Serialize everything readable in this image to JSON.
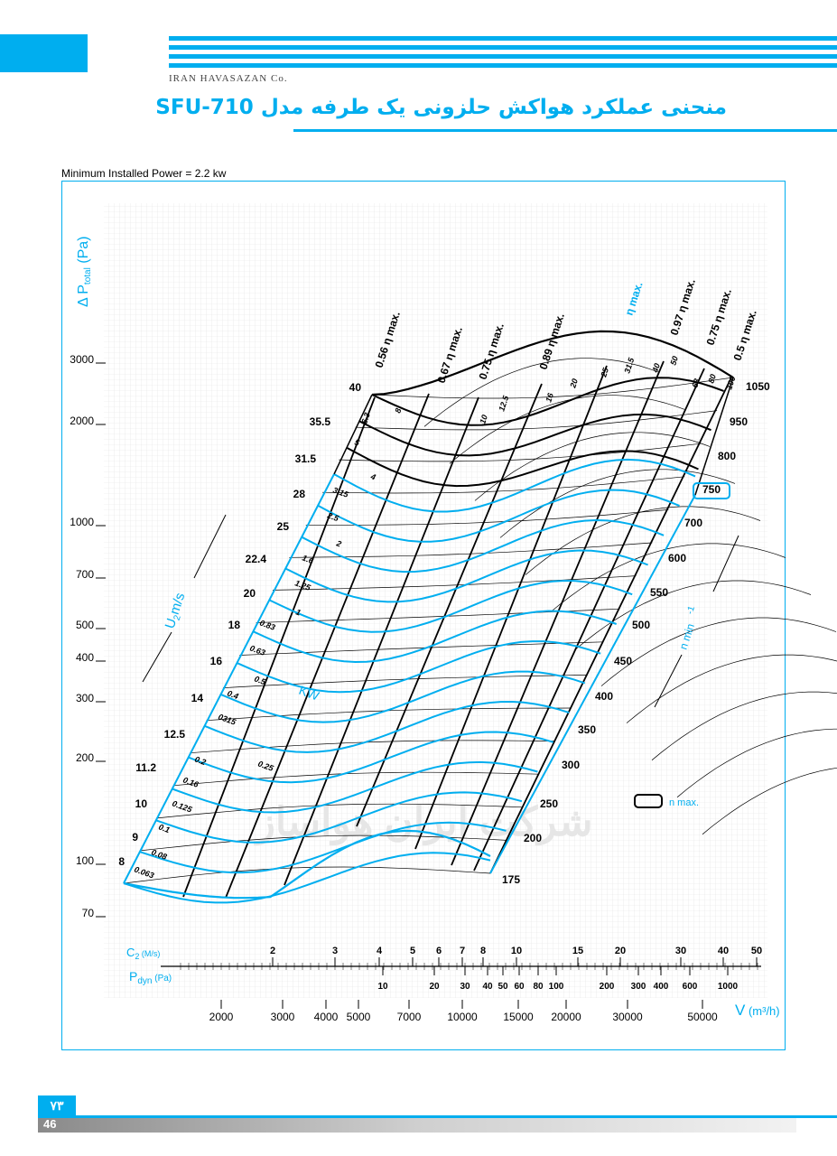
{
  "header": {
    "company": "IRAN HAVASAZAN Co.",
    "title": "منحنی عملکرد هواکش حلزونی یک طرفه مدل SFU-710"
  },
  "min_power": "Minimum Installed Power = 2.2 kw",
  "watermark": "شرکت ایران هواساز",
  "footer": {
    "fa_page": "۷۳",
    "page": "46"
  },
  "colors": {
    "accent": "#00aeef",
    "curve": "#000000"
  },
  "chart_data": {
    "type": "line",
    "title": "",
    "ylabel_prefix": "Δ P",
    "ylabel_sub": "total",
    "ylabel_unit": "(Pa)",
    "xlabel_main": "V",
    "xlabel_unit": "(m³/h)",
    "c2_label": "C",
    "c2_sub": "2",
    "c2_unit": "(M/s)",
    "pdyn_label": "P",
    "pdyn_sub": "dyn",
    "pdyn_unit": "(Pa)",
    "y_log_scale": true,
    "x_log_scale": true,
    "y_ticks": [
      3000,
      2000,
      1000,
      700,
      500,
      400,
      300,
      200,
      100,
      70
    ],
    "x_ticks": [
      2000,
      3000,
      4000,
      5000,
      7000,
      10000,
      15000,
      20000,
      30000,
      50000
    ],
    "c2_ticks": [
      2,
      3,
      4,
      5,
      6,
      7,
      8,
      10,
      15,
      20,
      30,
      40,
      50
    ],
    "pdyn_ticks": [
      "10",
      "20",
      "30",
      "40",
      "50",
      "60",
      "80",
      "100",
      "200",
      "300",
      "400",
      "600",
      "1000"
    ],
    "u2_label": "U",
    "u2_sub": "2",
    "u2_unit": "m/s",
    "u2_values": [
      "40",
      "35.5",
      "31.5",
      "28",
      "25",
      "22.4",
      "20",
      "18",
      "16",
      "14",
      "12.5",
      "11.2",
      "10",
      "9",
      "8"
    ],
    "kw_label": "KW",
    "kw_values": [
      "6.3",
      "8",
      "10",
      "12.5",
      "16",
      "20",
      "25",
      "31.5",
      "40",
      "50",
      "63",
      "80",
      "100",
      "5",
      "4",
      "3.15",
      "2.5",
      "2",
      "1.6",
      "1.25",
      "1",
      "0.83",
      "0.63",
      "0.5",
      "0.4",
      "0315",
      "0.25",
      "0.2",
      "0.16",
      "0.125",
      "0.1",
      "0.08",
      "0.063"
    ],
    "speed_label": "n min",
    "speed_exp": "-1",
    "speeds": [
      "1050",
      "950",
      "800",
      "750",
      "700",
      "600",
      "550",
      "500",
      "450",
      "400",
      "350",
      "300",
      "250",
      "200",
      "175"
    ],
    "speed_max": "750",
    "legend_nmax": "n max.",
    "efficiency_lines": [
      "0.56 η max.",
      "0.67 η max.",
      "0.75 η max.",
      "0.89 η max.",
      "η max.",
      "0.97 η max.",
      "0.75 η max.",
      "0.5 η max."
    ]
  }
}
